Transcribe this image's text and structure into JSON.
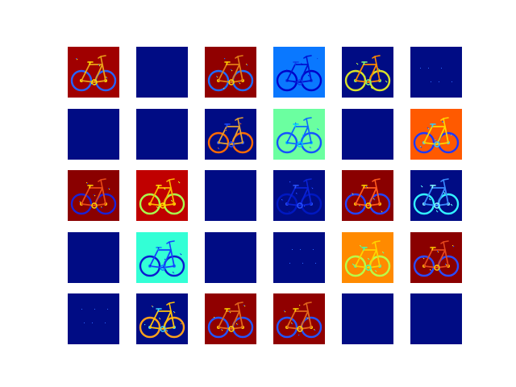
{
  "figure": {
    "grid": {
      "rows": 5,
      "cols": 6
    },
    "colormap": "jet",
    "tiles": [
      {
        "bg": "#a00000",
        "bike": true,
        "wheel": "#2563ff",
        "frame": "#eaa01a",
        "accent": "#ffe600"
      },
      {
        "bg": "#000c84",
        "bike": false
      },
      {
        "bg": "#900000",
        "bike": true,
        "wheel": "#1d6cff",
        "frame": "#e27d17",
        "accent": "#ffd400"
      },
      {
        "bg": "#0a78ff",
        "bike": true,
        "wheel": "#0000c8",
        "frame": "#0014d0",
        "accent": "#0a3de8"
      },
      {
        "bg": "#000c84",
        "bike": true,
        "wheel": "#d9e22a",
        "frame": "#ff8a00",
        "accent": "#7dff7a"
      },
      {
        "bg": "#000c84",
        "bike": false,
        "specks": true
      },
      {
        "bg": "#000c84",
        "bike": false
      },
      {
        "bg": "#000c84",
        "bike": false
      },
      {
        "bg": "#000c84",
        "bike": true,
        "wheel": "#ff6a00",
        "frame": "#e0a035",
        "accent": "#1a4cff"
      },
      {
        "bg": "#6bffa0",
        "bike": true,
        "wheel": "#1552ff",
        "frame": "#0a6cff",
        "accent": "#00c8ff"
      },
      {
        "bg": "#000c84",
        "bike": false
      },
      {
        "bg": "#ff5a00",
        "bike": true,
        "wheel": "#1d39ff",
        "frame": "#ffd600",
        "accent": "#33c9ff"
      },
      {
        "bg": "#8a0000",
        "bike": true,
        "wheel": "#1a22d6",
        "frame": "#e84a16",
        "accent": "#ffd600"
      },
      {
        "bg": "#c00000",
        "bike": true,
        "wheel": "#a8ff4e",
        "frame": "#ffb300",
        "accent": "#ffe800"
      },
      {
        "bg": "#000c84",
        "bike": false
      },
      {
        "bg": "#000c84",
        "bike": true,
        "wheel": "#0018c0",
        "frame": "#0a22d6",
        "accent": "#2a54ff"
      },
      {
        "bg": "#8a0000",
        "bike": true,
        "wheel": "#2244ff",
        "frame": "#ff5a1e",
        "accent": "#ffd600"
      },
      {
        "bg": "#000c84",
        "bike": true,
        "wheel": "#33f2ff",
        "frame": "#3a8bff",
        "accent": "#8affff"
      },
      {
        "bg": "#000c84",
        "bike": false
      },
      {
        "bg": "#33ffd6",
        "bike": true,
        "wheel": "#0b1ad0",
        "frame": "#1540ff",
        "accent": "#0a7cff"
      },
      {
        "bg": "#000c84",
        "bike": false
      },
      {
        "bg": "#000c84",
        "bike": false,
        "specks": true
      },
      {
        "bg": "#ff8a00",
        "bike": true,
        "wheel": "#b8ff4a",
        "frame": "#ffd400",
        "accent": "#3dffb0"
      },
      {
        "bg": "#8a0000",
        "bike": true,
        "wheel": "#2a4cff",
        "frame": "#e2471c",
        "accent": "#ffcc00"
      },
      {
        "bg": "#000c84",
        "bike": false,
        "specks": true
      },
      {
        "bg": "#000c84",
        "bike": true,
        "wheel": "#ffa21a",
        "frame": "#ffc20a",
        "accent": "#3dd8ff"
      },
      {
        "bg": "#900000",
        "bike": true,
        "wheel": "#2256ff",
        "frame": "#e2681c",
        "accent": "#ffd600"
      },
      {
        "bg": "#900000",
        "bike": true,
        "wheel": "#2256ff",
        "frame": "#e2681c",
        "accent": "#ffd600"
      },
      {
        "bg": "#000c84",
        "bike": false
      },
      {
        "bg": "#000c84",
        "bike": false
      }
    ]
  }
}
